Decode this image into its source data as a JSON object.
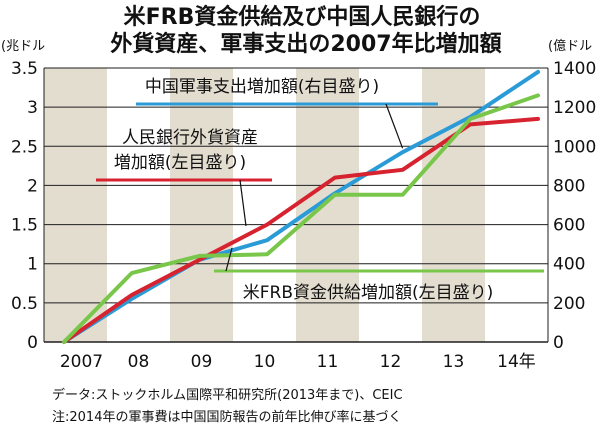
{
  "chart_data": {
    "type": "line",
    "title_lines": [
      "米FRB資金供給及び中国人民銀行の",
      "外貨資産、軍事支出の2007年比増加額"
    ],
    "y_left_unit": "(兆ドル",
    "y_right_unit": "(億ドル",
    "y_left": {
      "min": 0,
      "max": 3.5,
      "ticks": [
        "0",
        "0.5",
        "1",
        "1.5",
        "2",
        "2.5",
        "3",
        "3.5"
      ]
    },
    "y_right": {
      "min": 0,
      "max": 1400,
      "ticks": [
        "0",
        "200",
        "400",
        "600",
        "800",
        "1000",
        "1200",
        "1400"
      ]
    },
    "x_ticks": [
      "2007",
      "08",
      "09",
      "10",
      "11",
      "12",
      "13",
      "14年"
    ],
    "x_values": [
      2007,
      2008,
      2009,
      2010,
      2011,
      2012,
      2013,
      2014
    ],
    "colors": {
      "pboc": "#d7232f",
      "military": "#2b9bd8",
      "fed": "#79c74a",
      "stripe": "#e3ddd0",
      "grid": "#1e1e1e"
    },
    "series": [
      {
        "key": "military",
        "name": "中国軍事支出増加額(右目盛り)",
        "axis": "right",
        "values": [
          0,
          220,
          420,
          520,
          760,
          970,
          1150,
          1380
        ]
      },
      {
        "key": "pboc",
        "name_lines": [
          "人民銀行外貨資産",
          "増加額(左目盛り)"
        ],
        "axis": "left",
        "values": [
          0,
          0.6,
          1.05,
          1.5,
          2.1,
          2.2,
          2.78,
          2.85
        ]
      },
      {
        "key": "fed",
        "name": "米FRB資金供給増加額(左目盛り)",
        "axis": "left",
        "values": [
          0,
          0.88,
          1.1,
          1.12,
          1.88,
          1.88,
          2.85,
          3.15
        ]
      }
    ],
    "source_lines": [
      "データ:ストックホルム国際平和研究所(2013年まで)、CEIC",
      "注:2014年の軍事費は中国国防報告の前年比伸び率に基づく"
    ]
  }
}
